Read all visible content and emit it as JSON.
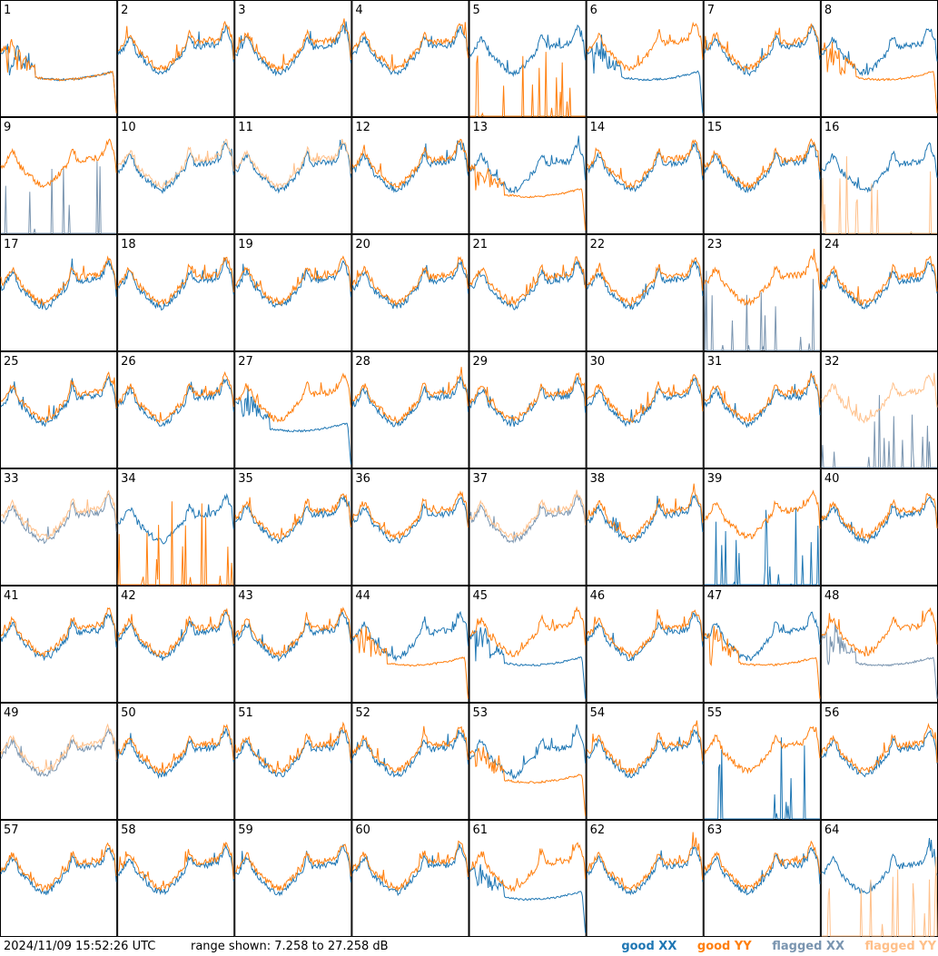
{
  "chart_data": {
    "type": "line",
    "grid": {
      "rows": 8,
      "cols": 8
    },
    "panels": [
      {
        "label": "1",
        "xx": "good",
        "yy": "good",
        "xx_shape": "saturated",
        "yy_shape": "saturated"
      },
      {
        "label": "2",
        "xx": "good",
        "yy": "good"
      },
      {
        "label": "3",
        "xx": "good",
        "yy": "good"
      },
      {
        "label": "4",
        "xx": "good",
        "yy": "good"
      },
      {
        "label": "5",
        "xx": "good",
        "yy": "good",
        "yy_shape": "spiky"
      },
      {
        "label": "6",
        "xx": "good",
        "yy": "good",
        "xx_shape": "saturated"
      },
      {
        "label": "7",
        "xx": "good",
        "yy": "good"
      },
      {
        "label": "8",
        "xx": "good",
        "yy": "good",
        "yy_shape": "saturated"
      },
      {
        "label": "9",
        "xx": "flagged",
        "yy": "good",
        "xx_shape": "spiky"
      },
      {
        "label": "10",
        "xx": "good",
        "yy": "flagged"
      },
      {
        "label": "11",
        "xx": "good",
        "yy": "flagged"
      },
      {
        "label": "12",
        "xx": "good",
        "yy": "good"
      },
      {
        "label": "13",
        "xx": "good",
        "yy": "good",
        "yy_shape": "saturated"
      },
      {
        "label": "14",
        "xx": "good",
        "yy": "good"
      },
      {
        "label": "15",
        "xx": "good",
        "yy": "good"
      },
      {
        "label": "16",
        "xx": "good",
        "yy": "flagged",
        "yy_shape": "spiky"
      },
      {
        "label": "17",
        "xx": "good",
        "yy": "good"
      },
      {
        "label": "18",
        "xx": "good",
        "yy": "good"
      },
      {
        "label": "19",
        "xx": "good",
        "yy": "good"
      },
      {
        "label": "20",
        "xx": "good",
        "yy": "good"
      },
      {
        "label": "21",
        "xx": "good",
        "yy": "good"
      },
      {
        "label": "22",
        "xx": "good",
        "yy": "good"
      },
      {
        "label": "23",
        "xx": "flagged",
        "yy": "good",
        "xx_shape": "spiky"
      },
      {
        "label": "24",
        "xx": "good",
        "yy": "good"
      },
      {
        "label": "25",
        "xx": "good",
        "yy": "good"
      },
      {
        "label": "26",
        "xx": "good",
        "yy": "good"
      },
      {
        "label": "27",
        "xx": "good",
        "yy": "good",
        "xx_shape": "saturated"
      },
      {
        "label": "28",
        "xx": "good",
        "yy": "good"
      },
      {
        "label": "29",
        "xx": "good",
        "yy": "good"
      },
      {
        "label": "30",
        "xx": "good",
        "yy": "good"
      },
      {
        "label": "31",
        "xx": "good",
        "yy": "good"
      },
      {
        "label": "32",
        "xx": "flagged",
        "yy": "flagged",
        "xx_shape": "spiky"
      },
      {
        "label": "33",
        "xx": "flagged",
        "yy": "flagged"
      },
      {
        "label": "34",
        "xx": "good",
        "yy": "good",
        "yy_shape": "spiky"
      },
      {
        "label": "35",
        "xx": "good",
        "yy": "good"
      },
      {
        "label": "36",
        "xx": "good",
        "yy": "good"
      },
      {
        "label": "37",
        "xx": "flagged",
        "yy": "flagged"
      },
      {
        "label": "38",
        "xx": "good",
        "yy": "good"
      },
      {
        "label": "39",
        "xx": "good",
        "yy": "good",
        "xx_shape": "spiky"
      },
      {
        "label": "40",
        "xx": "good",
        "yy": "good"
      },
      {
        "label": "41",
        "xx": "good",
        "yy": "good"
      },
      {
        "label": "42",
        "xx": "good",
        "yy": "good"
      },
      {
        "label": "43",
        "xx": "good",
        "yy": "good"
      },
      {
        "label": "44",
        "xx": "good",
        "yy": "good",
        "yy_shape": "saturated"
      },
      {
        "label": "45",
        "xx": "good",
        "yy": "good",
        "xx_shape": "saturated"
      },
      {
        "label": "46",
        "xx": "good",
        "yy": "good"
      },
      {
        "label": "47",
        "xx": "good",
        "yy": "good",
        "yy_shape": "saturated"
      },
      {
        "label": "48",
        "xx": "flagged",
        "yy": "good",
        "xx_shape": "saturated"
      },
      {
        "label": "49",
        "xx": "flagged",
        "yy": "flagged"
      },
      {
        "label": "50",
        "xx": "good",
        "yy": "good"
      },
      {
        "label": "51",
        "xx": "good",
        "yy": "good"
      },
      {
        "label": "52",
        "xx": "good",
        "yy": "good"
      },
      {
        "label": "53",
        "xx": "good",
        "yy": "good",
        "yy_shape": "saturated"
      },
      {
        "label": "54",
        "xx": "good",
        "yy": "good"
      },
      {
        "label": "55",
        "xx": "good",
        "yy": "good",
        "xx_shape": "spiky"
      },
      {
        "label": "56",
        "xx": "good",
        "yy": "good"
      },
      {
        "label": "57",
        "xx": "good",
        "yy": "good"
      },
      {
        "label": "58",
        "xx": "good",
        "yy": "good"
      },
      {
        "label": "59",
        "xx": "good",
        "yy": "good"
      },
      {
        "label": "60",
        "xx": "good",
        "yy": "good"
      },
      {
        "label": "61",
        "xx": "good",
        "yy": "good",
        "xx_shape": "saturated"
      },
      {
        "label": "62",
        "xx": "good",
        "yy": "good"
      },
      {
        "label": "63",
        "xx": "good",
        "yy": "good"
      },
      {
        "label": "64",
        "xx": "good",
        "yy": "flagged",
        "yy_shape": "spiky"
      }
    ],
    "legend": [
      {
        "key": "good_xx",
        "text": "good XX",
        "color": "#1f77b4"
      },
      {
        "key": "good_yy",
        "text": "good YY",
        "color": "#ff7f0e"
      },
      {
        "key": "flagged_xx",
        "text": "flagged XX",
        "color": "#7a95b0"
      },
      {
        "key": "flagged_yy",
        "text": "flagged YY",
        "color": "#ffc08a"
      }
    ],
    "range_db": [
      7.258,
      27.258
    ],
    "legend_position": "bottom-right"
  },
  "footer": {
    "timestamp": "2024/11/09 15:52:26 UTC",
    "range_text": "range shown: 7.258 to 27.258 dB"
  }
}
